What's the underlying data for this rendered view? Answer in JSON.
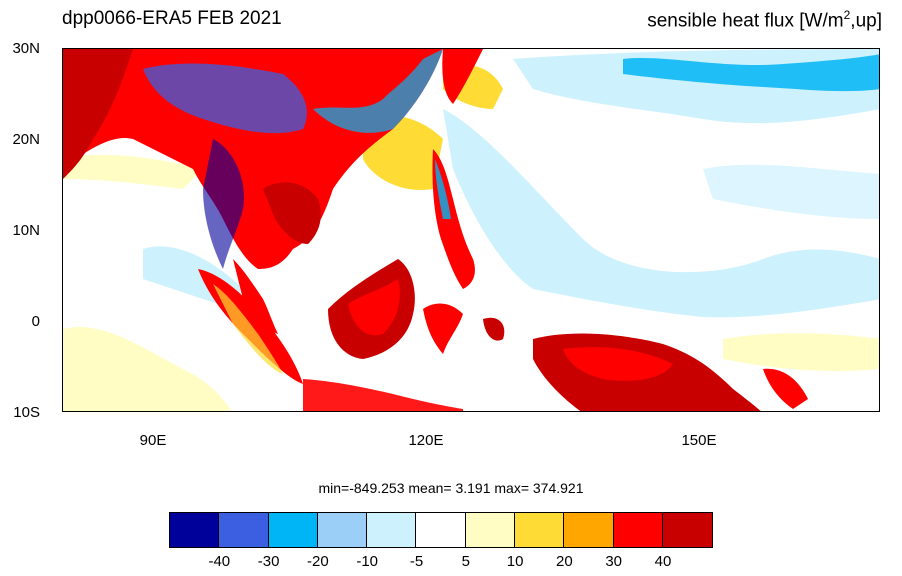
{
  "header": {
    "left_title": "dpp0066-ERA5  FEB 2021",
    "right_title_prefix": "sensible heat flux [W/m",
    "right_title_sup": "2",
    "right_title_suffix": ",up]"
  },
  "axes": {
    "lat_labels": [
      "30N",
      "20N",
      "10N",
      "0",
      "10S"
    ],
    "lon_labels": [
      "90E",
      "120E",
      "150E"
    ]
  },
  "stats": {
    "text": "min=-849.253  mean=   3.191  max= 374.921"
  },
  "colorbar": {
    "colors": [
      "#00009a",
      "#3b5fe0",
      "#00b5f5",
      "#9ccff8",
      "#cdf1fd",
      "#ffffff",
      "#fffdc3",
      "#ffdc35",
      "#ffa600",
      "#ff0000",
      "#c90000"
    ],
    "labels": [
      "-40",
      "-30",
      "-20",
      "-10",
      "-5",
      "5",
      "10",
      "20",
      "30",
      "40"
    ]
  },
  "map": {
    "region": "80E-170E, 10S-30N",
    "land_color_hot": "#c90000",
    "land_color_warm": "#ff0000",
    "ocean_cool": "#cdf1fd",
    "ocean_cold": "#00b5f5",
    "ocean_warm": "#fffdc3",
    "ocean_warmer": "#ffdc35"
  }
}
